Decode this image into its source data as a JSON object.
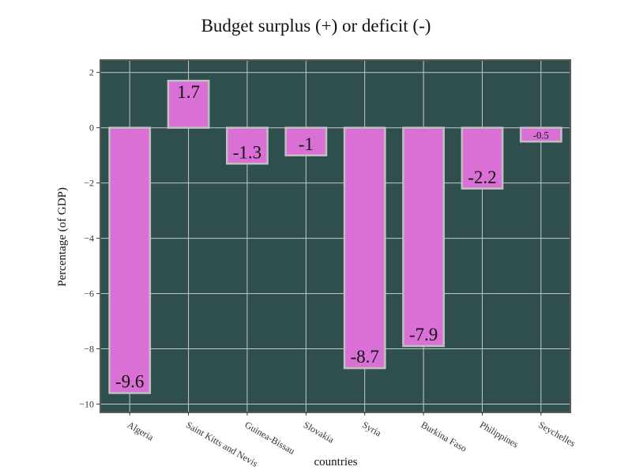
{
  "chart_data": {
    "type": "bar",
    "title": "Budget surplus (+) or deficit (-)",
    "xlabel": "countries",
    "ylabel": "Percentage (of GDP)",
    "categories": [
      "Algeria",
      "Saint Kitts and Nevis",
      "Guinea-Bissau",
      "Slovakia",
      "Syria",
      "Burkina Faso",
      "Philippines",
      "Seychelles"
    ],
    "values": [
      -9.6,
      1.7,
      -1.3,
      -1,
      -8.7,
      -7.9,
      -2.2,
      -0.5
    ],
    "data_labels": [
      "-9.6",
      "1.7",
      "-1.3",
      "-1",
      "-8.7",
      "-7.9",
      "-2.2",
      "-0.5"
    ],
    "yticks": [
      2,
      0,
      -2,
      -4,
      -6,
      -8,
      -10
    ],
    "ytick_labels": [
      "2",
      "0",
      "−2",
      "−4",
      "−6",
      "−8",
      "−10"
    ],
    "ylim": [
      -10.3,
      2.45
    ],
    "grid": true,
    "legend": "none",
    "colors": {
      "plot_background": "#2f4f4f",
      "bar_fill": "#da70d6",
      "bar_edge": "#c0c0c0",
      "grid": "#c8c8c8",
      "frame": "#5a5a5a",
      "label_text": "#111111"
    }
  }
}
